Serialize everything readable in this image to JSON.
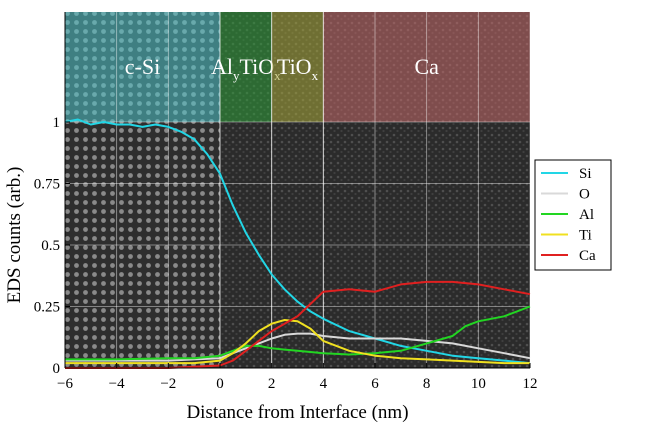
{
  "chart_data": {
    "type": "line",
    "xlabel": "Distance from Interface (nm)",
    "ylabel": "EDS counts (arb.)",
    "xlim": [
      -6,
      12
    ],
    "ylim": [
      0,
      1
    ],
    "xticks": [
      -6,
      -4,
      -2,
      0,
      2,
      4,
      6,
      8,
      10,
      12
    ],
    "xtick_labels": [
      "−6",
      "−4",
      "−2",
      "0",
      "2",
      "4",
      "6",
      "8",
      "10",
      "12"
    ],
    "yticks": [
      0,
      0.25,
      0.5,
      0.75,
      1
    ],
    "ytick_labels": [
      "0",
      "0.25",
      "0.5",
      "0.75",
      "1"
    ],
    "grid": true,
    "legend_position": "right",
    "regions": [
      {
        "label": "c-Si",
        "sub": "",
        "x0": -6,
        "x1": 0,
        "color": "#4fc3c9"
      },
      {
        "label": "Al",
        "sub": "y",
        "label2": "TiO",
        "sub2": "x",
        "x0": 0,
        "x1": 2,
        "color": "#2f9e3a"
      },
      {
        "label": "TiO",
        "sub": "x",
        "x0": 2,
        "x1": 4,
        "color": "#a8a83a"
      },
      {
        "label": "Ca",
        "sub": "",
        "x0": 4,
        "x1": 12,
        "color": "#c46a6a"
      }
    ],
    "series": [
      {
        "name": "Si",
        "color": "#22d6e6",
        "x": [
          -6,
          -5.5,
          -5,
          -4.5,
          -4,
          -3.5,
          -3,
          -2.5,
          -2,
          -1.5,
          -1,
          -0.5,
          0,
          0.5,
          1,
          1.5,
          2,
          2.5,
          3,
          3.5,
          4,
          5,
          6,
          7,
          8,
          9,
          10,
          11,
          12
        ],
        "y": [
          1.0,
          1.01,
          0.99,
          1.0,
          0.99,
          0.99,
          0.98,
          0.99,
          0.98,
          0.96,
          0.93,
          0.87,
          0.79,
          0.66,
          0.55,
          0.46,
          0.38,
          0.32,
          0.27,
          0.23,
          0.2,
          0.15,
          0.12,
          0.09,
          0.07,
          0.05,
          0.04,
          0.03,
          0.02
        ]
      },
      {
        "name": "O",
        "color": "#d9d9d9",
        "x": [
          -6,
          -4,
          -2,
          -1,
          0,
          0.5,
          1,
          1.5,
          2,
          2.5,
          3,
          3.5,
          4,
          5,
          6,
          7,
          8,
          9,
          10,
          11,
          12
        ],
        "y": [
          0.03,
          0.03,
          0.03,
          0.035,
          0.04,
          0.06,
          0.08,
          0.1,
          0.12,
          0.135,
          0.14,
          0.14,
          0.13,
          0.12,
          0.12,
          0.12,
          0.11,
          0.1,
          0.08,
          0.06,
          0.04
        ]
      },
      {
        "name": "Al",
        "color": "#22d622",
        "x": [
          -6,
          -4,
          -2,
          -1,
          0,
          0.5,
          1,
          1.5,
          2,
          2.5,
          3,
          4,
          5,
          6,
          7,
          8,
          9,
          9.5,
          10,
          11,
          12
        ],
        "y": [
          0.035,
          0.035,
          0.04,
          0.04,
          0.05,
          0.07,
          0.09,
          0.09,
          0.08,
          0.075,
          0.07,
          0.06,
          0.055,
          0.06,
          0.07,
          0.1,
          0.13,
          0.17,
          0.19,
          0.21,
          0.25
        ]
      },
      {
        "name": "Ti",
        "color": "#f0e020",
        "x": [
          -6,
          -4,
          -2,
          -1,
          0,
          0.5,
          1,
          1.5,
          2,
          2.5,
          3,
          3.5,
          4,
          5,
          6,
          7,
          8,
          9,
          10,
          11,
          12
        ],
        "y": [
          0.02,
          0.02,
          0.02,
          0.02,
          0.03,
          0.06,
          0.1,
          0.15,
          0.18,
          0.195,
          0.19,
          0.16,
          0.11,
          0.07,
          0.05,
          0.04,
          0.035,
          0.03,
          0.025,
          0.02,
          0.02
        ]
      },
      {
        "name": "Ca",
        "color": "#e02020",
        "x": [
          -6,
          -4,
          -2,
          0,
          0.5,
          1,
          1.5,
          2,
          2.5,
          3,
          3.5,
          4,
          5,
          6,
          7,
          8,
          9,
          10,
          11,
          12
        ],
        "y": [
          0.0,
          0.0,
          0.0,
          0.01,
          0.03,
          0.07,
          0.11,
          0.15,
          0.18,
          0.21,
          0.26,
          0.31,
          0.32,
          0.31,
          0.34,
          0.35,
          0.35,
          0.34,
          0.32,
          0.3
        ]
      }
    ]
  }
}
